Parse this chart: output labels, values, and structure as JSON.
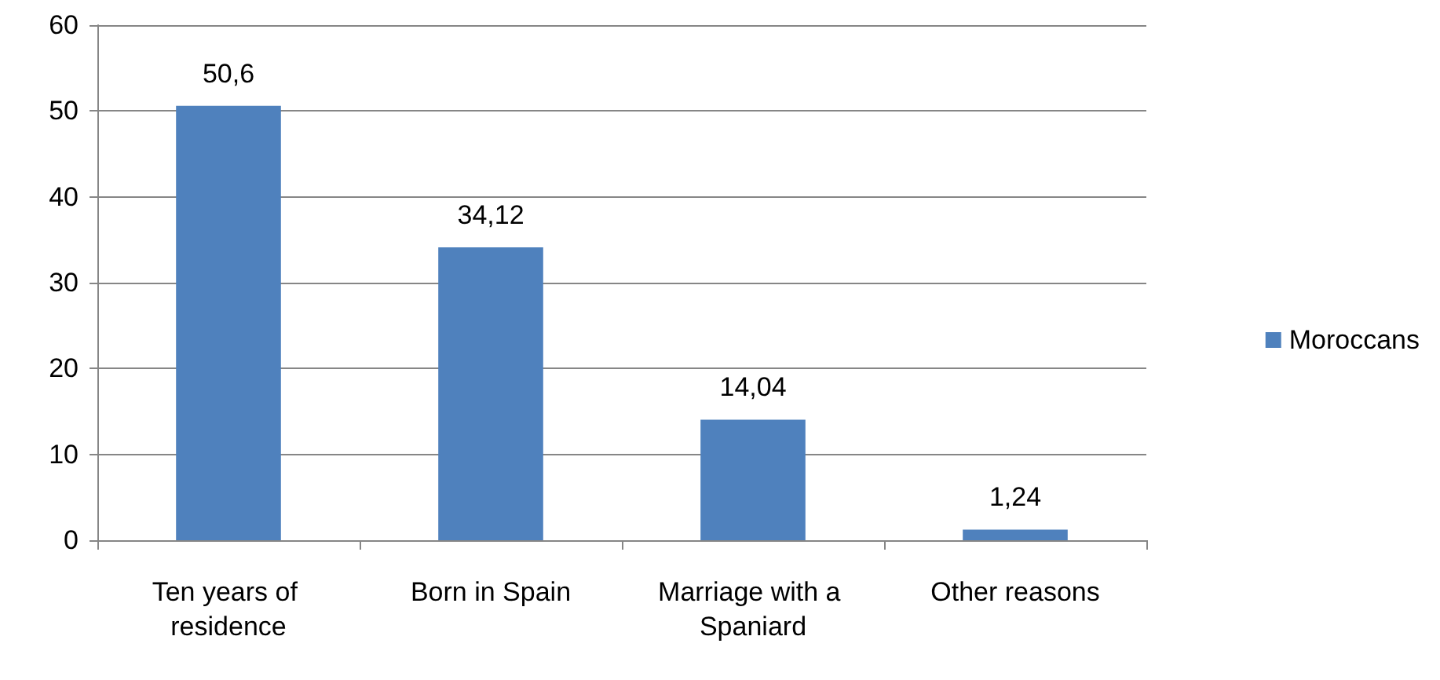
{
  "chart_data": {
    "type": "bar",
    "categories": [
      "Ten years of residence",
      "Born in Spain",
      "Marriage with a Spaniard",
      "Other reasons"
    ],
    "series": [
      {
        "name": "Moroccans",
        "color": "#4f81bd",
        "values": [
          50.6,
          34.12,
          14.04,
          1.24
        ],
        "value_labels": [
          "50,6",
          "34,12",
          "14,04",
          "1,24"
        ]
      }
    ],
    "ylim": [
      0,
      60
    ],
    "yticks": [
      0,
      10,
      20,
      30,
      40,
      50,
      60
    ],
    "grid": "y",
    "legend": "right"
  }
}
